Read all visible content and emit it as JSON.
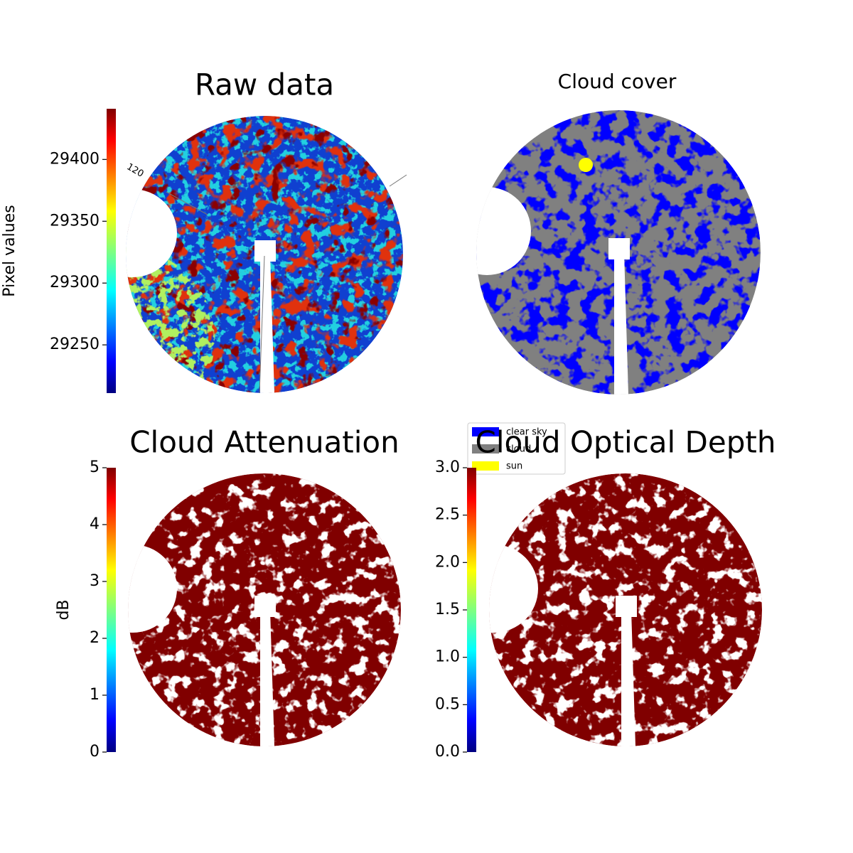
{
  "chart_data": [
    {
      "type": "image",
      "title": "Raw data",
      "annotations": [
        "120"
      ],
      "colorbar": {
        "label": "Pixel values",
        "ylim": [
          29211,
          29441
        ],
        "yticks": [
          29250,
          29300,
          29350,
          29400
        ]
      }
    },
    {
      "type": "image",
      "title": "Cloud cover",
      "legend": "lower left",
      "series": [
        {
          "name": "clear sky",
          "color": "#0000ff"
        },
        {
          "name": "cloud",
          "color": "#808080"
        },
        {
          "name": "sun",
          "color": "#ffff00"
        }
      ]
    },
    {
      "type": "image",
      "title": "Cloud Attenuation",
      "color": "#800000",
      "colorbar": {
        "label": "dB",
        "ylim": [
          0,
          5
        ],
        "yticks": [
          0,
          1,
          2,
          3,
          4,
          5
        ]
      }
    },
    {
      "type": "image",
      "title": "Cloud Optical Depth",
      "color": "#800000",
      "colorbar": {
        "ylim": [
          0,
          3
        ],
        "yticks": [
          {
            "value": 0,
            "label": "0.0"
          },
          0.5,
          {
            "value": 1,
            "label": "1.0"
          },
          1.5,
          {
            "value": 2,
            "label": "2.0"
          },
          2.5,
          {
            "value": 3,
            "label": "3.0"
          }
        ]
      }
    }
  ]
}
